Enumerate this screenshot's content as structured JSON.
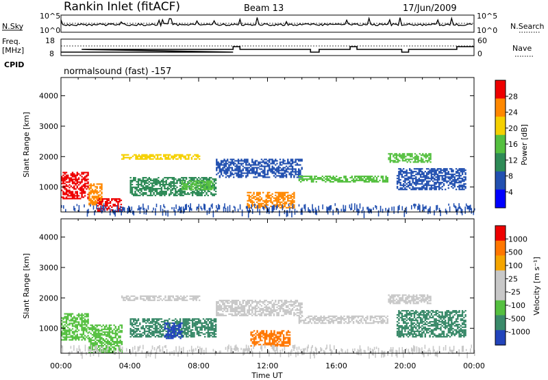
{
  "header": {
    "title": "Rankin Inlet (fitACF)",
    "beam": "Beam 13",
    "date": "17/Jun/2009"
  },
  "noise_panel": {
    "left_label": "N.Sky",
    "right_label": "N.Search",
    "y_ticks": [
      "10^5",
      "10^0"
    ]
  },
  "freq_panel": {
    "left_label_line1": "Freq.",
    "left_label_line2": "[MHz]",
    "right_label": "Nave",
    "left_ticks": [
      "18",
      "8"
    ],
    "right_ticks": [
      "60",
      "0"
    ]
  },
  "cpid": {
    "label": "CPID",
    "text": "normalsound (fast) -157"
  },
  "chart_data": [
    {
      "type": "heatmap",
      "name": "power",
      "xlabel": "",
      "ylabel": "Slant Range [km]",
      "ylim": [
        180,
        4600
      ],
      "yticks": [
        1000,
        2000,
        3000,
        4000
      ],
      "colorbar": {
        "label": "Power [dB]",
        "ticks": [
          4,
          8,
          12,
          16,
          20,
          24,
          28
        ],
        "colors": [
          "#0000ff",
          "#2250b0",
          "#2e8b57",
          "#55c040",
          "#f5d000",
          "#ff8800",
          "#ee0000"
        ]
      },
      "regions": [
        {
          "t0": 0.0,
          "t1": 1.6,
          "r0": 600,
          "r1": 1500,
          "color": "#ee0000"
        },
        {
          "t0": 1.6,
          "t1": 2.4,
          "r0": 400,
          "r1": 1100,
          "color": "#ff8800"
        },
        {
          "t0": 2.1,
          "t1": 3.5,
          "r0": 180,
          "r1": 600,
          "color": "#ee0000"
        },
        {
          "t0": 3.5,
          "t1": 8.0,
          "r0": 1900,
          "r1": 2050,
          "color": "#f5d000"
        },
        {
          "t0": 4.0,
          "t1": 9.0,
          "r0": 700,
          "r1": 1300,
          "color": "#2e8b57"
        },
        {
          "t0": 7.0,
          "t1": 8.8,
          "r0": 900,
          "r1": 1200,
          "color": "#55c040"
        },
        {
          "t0": 9.0,
          "t1": 14.0,
          "r0": 1300,
          "r1": 1900,
          "color": "#2250b0"
        },
        {
          "t0": 10.8,
          "t1": 13.5,
          "r0": 300,
          "r1": 800,
          "color": "#ff8800"
        },
        {
          "t0": 13.8,
          "t1": 19.0,
          "r0": 1150,
          "r1": 1350,
          "color": "#55c040"
        },
        {
          "t0": 19.0,
          "t1": 21.5,
          "r0": 1800,
          "r1": 2100,
          "color": "#55c040"
        },
        {
          "t0": 19.5,
          "t1": 23.5,
          "r0": 900,
          "r1": 1600,
          "color": "#2250b0"
        }
      ]
    },
    {
      "type": "heatmap",
      "name": "velocity",
      "xlabel": "Time UT",
      "ylabel": "Slant Range [km]",
      "ylim": [
        180,
        4600
      ],
      "yticks": [
        1000,
        2000,
        3000,
        4000
      ],
      "xticks": [
        "00:00",
        "04:00",
        "08:00",
        "12:00",
        "16:00",
        "20:00",
        "00:00"
      ],
      "colorbar": {
        "label": "Velocity [m s⁻¹]",
        "ticks": [
          1000,
          500,
          100,
          25,
          -25,
          -100,
          -500,
          -1000
        ],
        "colors": [
          "#2244bb",
          "#3a8a6a",
          "#55c040",
          "#c8c8c8",
          "#c8c8c8",
          "#f5a500",
          "#ff7700",
          "#ee0000"
        ]
      },
      "regions": [
        {
          "t0": 0.0,
          "t1": 1.6,
          "r0": 600,
          "r1": 1500,
          "color": "#55c040"
        },
        {
          "t0": 1.6,
          "t1": 3.5,
          "r0": 180,
          "r1": 1100,
          "color": "#55c040"
        },
        {
          "t0": 3.5,
          "t1": 8.0,
          "r0": 1900,
          "r1": 2050,
          "color": "#c8c8c8"
        },
        {
          "t0": 4.0,
          "t1": 9.0,
          "r0": 700,
          "r1": 1300,
          "color": "#3a8a6a"
        },
        {
          "t0": 6.0,
          "t1": 7.0,
          "r0": 650,
          "r1": 1150,
          "color": "#2244bb"
        },
        {
          "t0": 9.0,
          "t1": 14.0,
          "r0": 1400,
          "r1": 1900,
          "color": "#c8c8c8"
        },
        {
          "t0": 11.0,
          "t1": 13.3,
          "r0": 400,
          "r1": 900,
          "color": "#ff7700"
        },
        {
          "t0": 13.8,
          "t1": 19.0,
          "r0": 1150,
          "r1": 1400,
          "color": "#c8c8c8"
        },
        {
          "t0": 19.0,
          "t1": 21.5,
          "r0": 1800,
          "r1": 2100,
          "color": "#c8c8c8"
        },
        {
          "t0": 19.5,
          "t1": 23.5,
          "r0": 700,
          "r1": 1600,
          "color": "#3a8a6a"
        }
      ]
    }
  ]
}
